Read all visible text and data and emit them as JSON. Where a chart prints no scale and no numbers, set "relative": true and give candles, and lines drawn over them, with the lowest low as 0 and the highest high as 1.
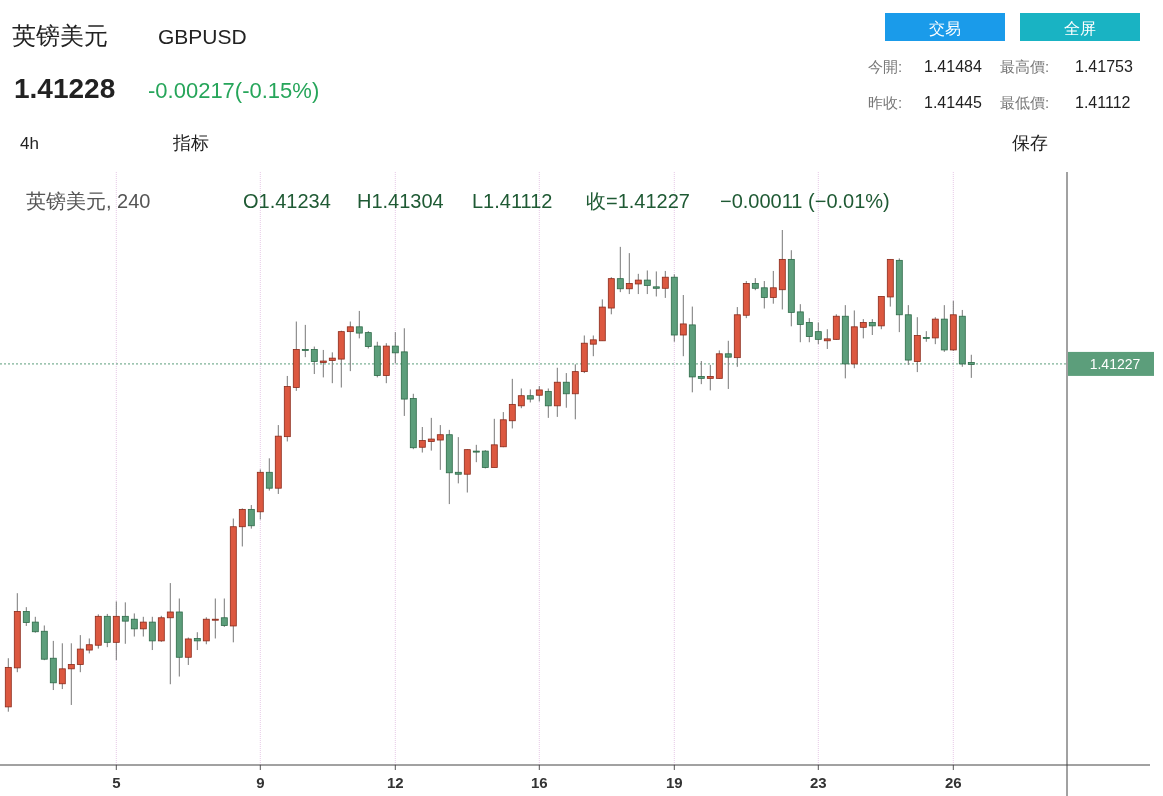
{
  "chart_data": {
    "type": "candlestick",
    "title": "英镑美元",
    "subtitle": "GBPUSD",
    "relative": true,
    "grid": "x",
    "colors": [
      "#dc5840",
      "#dc5840",
      "#5c9e7b",
      "#5c9e7b",
      "#5c9e7b",
      "#5c9e7b",
      "#dc5840",
      "#dc5840",
      "#dc5840",
      "#dc5840",
      "#dc5840",
      "#5c9e7b",
      "#dc5840",
      "#5c9e7b",
      "#5c9e7b",
      "#dc5840",
      "#5c9e7b",
      "#dc5840",
      "#dc5840",
      "#5c9e7b",
      "#dc5840",
      "#5c9e7b",
      "#dc5840",
      "#dc5840",
      "#5c9e7b",
      "#dc5840",
      "#dc5840",
      "#5c9e7b",
      "#dc5840",
      "#5c9e7b",
      "#dc5840",
      "#dc5840",
      "#dc5840",
      "#5c9e7b",
      "#5c9e7b",
      "#dc5840",
      "#dc5840",
      "#dc5840",
      "#dc5840",
      "#5c9e7b",
      "#5c9e7b",
      "#5c9e7b",
      "#dc5840",
      "#5c9e7b",
      "#5c9e7b",
      "#5c9e7b",
      "#dc5840",
      "#dc5840",
      "#dc5840",
      "#5c9e7b",
      "#5c9e7b",
      "#dc5840",
      "#5c9e7b",
      "#5c9e7b",
      "#dc5840",
      "#dc5840",
      "#dc5840",
      "#dc5840",
      "#5c9e7b",
      "#dc5840",
      "#5c9e7b",
      "#dc5840",
      "#5c9e7b",
      "#dc5840",
      "#dc5840",
      "#dc5840",
      "#dc5840",
      "#dc5840",
      "#5c9e7b",
      "#dc5840",
      "#dc5840",
      "#5c9e7b",
      "#5c9e7b",
      "#dc5840",
      "#5c9e7b",
      "#dc5840",
      "#5c9e7b",
      "#5c9e7b",
      "#dc5840",
      "#dc5840",
      "#5c9e7b",
      "#dc5840",
      "#dc5840",
      "#5c9e7b",
      "#5c9e7b",
      "#dc5840",
      "#dc5840",
      "#5c9e7b",
      "#5c9e7b",
      "#5c9e7b",
      "#5c9e7b",
      "#dc5840",
      "#dc5840",
      "#5c9e7b",
      "#dc5840",
      "#dc5840",
      "#5c9e7b",
      "#dc5840",
      "#dc5840",
      "#5c9e7b",
      "#5c9e7b",
      "#dc5840",
      "#5c9e7b",
      "#dc5840",
      "#5c9e7b",
      "#dc5840",
      "#5c9e7b",
      "#5c9e7b"
    ],
    "categories": [
      null,
      null,
      null,
      null,
      null,
      null,
      null,
      null,
      null,
      null,
      null,
      null,
      "5",
      null,
      null,
      null,
      null,
      null,
      null,
      null,
      null,
      null,
      null,
      null,
      null,
      null,
      null,
      null,
      "9",
      null,
      null,
      null,
      null,
      null,
      null,
      null,
      null,
      null,
      null,
      null,
      null,
      null,
      null,
      "12",
      null,
      null,
      null,
      null,
      null,
      null,
      null,
      null,
      null,
      null,
      null,
      null,
      null,
      null,
      null,
      "16",
      null,
      null,
      null,
      null,
      null,
      null,
      null,
      null,
      null,
      null,
      null,
      null,
      null,
      null,
      "19",
      null,
      null,
      null,
      null,
      null,
      null,
      null,
      null,
      null,
      null,
      null,
      null,
      null,
      null,
      null,
      "23",
      null,
      null,
      null,
      null,
      null,
      null,
      null,
      null,
      null,
      null,
      null,
      null,
      null,
      null,
      "26",
      null,
      null
    ],
    "ohlc": [
      [
        0.01,
        0.111,
        0,
        0.092
      ],
      [
        0.091,
        0.246,
        0.082,
        0.208
      ],
      [
        0.208,
        0.217,
        0.178,
        0.185
      ],
      [
        0.186,
        0.197,
        0.164,
        0.166
      ],
      [
        0.167,
        0.179,
        0.107,
        0.109
      ],
      [
        0.111,
        0.147,
        0.045,
        0.06
      ],
      [
        0.058,
        0.142,
        0.047,
        0.089
      ],
      [
        0.089,
        0.142,
        0.014,
        0.098
      ],
      [
        0.098,
        0.159,
        0.082,
        0.13
      ],
      [
        0.128,
        0.152,
        0.121,
        0.139
      ],
      [
        0.138,
        0.202,
        0.131,
        0.198
      ],
      [
        0.198,
        0.203,
        0.134,
        0.144
      ],
      [
        0.144,
        0.229,
        0.107,
        0.198
      ],
      [
        0.198,
        0.227,
        0.141,
        0.188
      ],
      [
        0.192,
        0.204,
        0.156,
        0.172
      ],
      [
        0.172,
        0.197,
        0.156,
        0.186
      ],
      [
        0.186,
        0.197,
        0.128,
        0.147
      ],
      [
        0.147,
        0.199,
        0.145,
        0.195
      ],
      [
        0.195,
        0.267,
        0.057,
        0.207
      ],
      [
        0.207,
        0.235,
        0.073,
        0.113
      ],
      [
        0.113,
        0.154,
        0.097,
        0.151
      ],
      [
        0.152,
        0.165,
        0.128,
        0.147
      ],
      [
        0.147,
        0.196,
        0.14,
        0.192
      ],
      [
        0.19,
        0.235,
        0.152,
        0.192
      ],
      [
        0.195,
        0.235,
        0.176,
        0.179
      ],
      [
        0.178,
        0.401,
        0.144,
        0.384
      ],
      [
        0.384,
        0.422,
        0.343,
        0.42
      ],
      [
        0.42,
        0.429,
        0.38,
        0.386
      ],
      [
        0.415,
        0.503,
        0.399,
        0.497
      ],
      [
        0.497,
        0.526,
        0.459,
        0.464
      ],
      [
        0.464,
        0.595,
        0.452,
        0.572
      ],
      [
        0.571,
        0.697,
        0.561,
        0.675
      ],
      [
        0.673,
        0.81,
        0.666,
        0.752
      ],
      [
        0.752,
        0.803,
        0.736,
        0.751
      ],
      [
        0.752,
        0.758,
        0.701,
        0.727
      ],
      [
        0.725,
        0.751,
        0.694,
        0.728
      ],
      [
        0.729,
        0.746,
        0.682,
        0.734
      ],
      [
        0.732,
        0.791,
        0.673,
        0.789
      ],
      [
        0.789,
        0.81,
        0.707,
        0.799
      ],
      [
        0.799,
        0.832,
        0.775,
        0.786
      ],
      [
        0.787,
        0.79,
        0.754,
        0.758
      ],
      [
        0.759,
        0.768,
        0.694,
        0.698
      ],
      [
        0.698,
        0.765,
        0.682,
        0.759
      ],
      [
        0.759,
        0.788,
        0.723,
        0.745
      ],
      [
        0.747,
        0.796,
        0.614,
        0.649
      ],
      [
        0.65,
        0.66,
        0.545,
        0.548
      ],
      [
        0.549,
        0.591,
        0.538,
        0.563
      ],
      [
        0.561,
        0.61,
        0.542,
        0.566
      ],
      [
        0.564,
        0.595,
        0.502,
        0.575
      ],
      [
        0.575,
        0.585,
        0.431,
        0.496
      ],
      [
        0.497,
        0.57,
        0.474,
        0.493
      ],
      [
        0.493,
        0.545,
        0.455,
        0.544
      ],
      [
        0.541,
        0.554,
        0.518,
        0.539
      ],
      [
        0.541,
        0.543,
        0.505,
        0.507
      ],
      [
        0.507,
        0.608,
        0.507,
        0.554
      ],
      [
        0.55,
        0.622,
        0.549,
        0.606
      ],
      [
        0.604,
        0.691,
        0.588,
        0.638
      ],
      [
        0.635,
        0.671,
        0.63,
        0.656
      ],
      [
        0.656,
        0.669,
        0.642,
        0.649
      ],
      [
        0.657,
        0.676,
        0.644,
        0.668
      ],
      [
        0.665,
        0.671,
        0.61,
        0.635
      ],
      [
        0.635,
        0.714,
        0.612,
        0.684
      ],
      [
        0.684,
        0.703,
        0.631,
        0.66
      ],
      [
        0.66,
        0.721,
        0.607,
        0.706
      ],
      [
        0.706,
        0.781,
        0.703,
        0.765
      ],
      [
        0.763,
        0.781,
        0.738,
        0.772
      ],
      [
        0.77,
        0.856,
        0.77,
        0.84
      ],
      [
        0.838,
        0.902,
        0.825,
        0.899
      ],
      [
        0.899,
        0.965,
        0.871,
        0.878
      ],
      [
        0.878,
        0.952,
        0.867,
        0.889
      ],
      [
        0.888,
        0.909,
        0.867,
        0.896
      ],
      [
        0.896,
        0.916,
        0.867,
        0.885
      ],
      [
        0.882,
        0.914,
        0.862,
        0.879
      ],
      [
        0.879,
        0.915,
        0.859,
        0.902
      ],
      [
        0.902,
        0.908,
        0.768,
        0.782
      ],
      [
        0.782,
        0.865,
        0.738,
        0.805
      ],
      [
        0.803,
        0.841,
        0.663,
        0.695
      ],
      [
        0.696,
        0.728,
        0.68,
        0.692
      ],
      [
        0.692,
        0.72,
        0.667,
        0.696
      ],
      [
        0.692,
        0.75,
        0.691,
        0.743
      ],
      [
        0.743,
        0.77,
        0.67,
        0.736
      ],
      [
        0.735,
        0.84,
        0.716,
        0.824
      ],
      [
        0.823,
        0.894,
        0.817,
        0.889
      ],
      [
        0.889,
        0.9,
        0.875,
        0.879
      ],
      [
        0.88,
        0.894,
        0.837,
        0.86
      ],
      [
        0.86,
        0.915,
        0.847,
        0.88
      ],
      [
        0.876,
        1,
        0.835,
        0.939
      ],
      [
        0.939,
        0.958,
        0.8,
        0.829
      ],
      [
        0.83,
        0.846,
        0.767,
        0.804
      ],
      [
        0.808,
        0.817,
        0.767,
        0.779
      ],
      [
        0.789,
        0.808,
        0.763,
        0.773
      ],
      [
        0.77,
        0.794,
        0.753,
        0.774
      ],
      [
        0.773,
        0.825,
        0.772,
        0.821
      ],
      [
        0.821,
        0.844,
        0.692,
        0.722
      ],
      [
        0.722,
        0.833,
        0.713,
        0.799
      ],
      [
        0.798,
        0.815,
        0.775,
        0.808
      ],
      [
        0.808,
        0.815,
        0.782,
        0.801
      ],
      [
        0.801,
        0.862,
        0.794,
        0.862
      ],
      [
        0.861,
        0.939,
        0.841,
        0.939
      ],
      [
        0.937,
        0.941,
        0.788,
        0.824
      ],
      [
        0.824,
        0.844,
        0.72,
        0.73
      ],
      [
        0.727,
        0.819,
        0.705,
        0.781
      ],
      [
        0.777,
        0.79,
        0.768,
        0.775
      ],
      [
        0.776,
        0.819,
        0.763,
        0.815
      ],
      [
        0.815,
        0.844,
        0.747,
        0.751
      ],
      [
        0.751,
        0.853,
        0.749,
        0.824
      ],
      [
        0.821,
        0.834,
        0.716,
        0.722
      ],
      [
        0.725,
        0.741,
        0.693,
        0.721
      ]
    ],
    "ref_lines": [
      {
        "axis": "y",
        "value": 0.722,
        "color": "#5c9e7b",
        "line_style": "dotted"
      }
    ],
    "annotations": [
      "1.41228",
      "-0.00217(-0.15%)",
      "今開:",
      "1.41484",
      "最高價:",
      "1.41753",
      "昨收:",
      "1.41445",
      "最低價:",
      "1.41112",
      "4h",
      "指标",
      "保存",
      "交易",
      "全屏",
      "英镑美元, 240",
      "O1.41234",
      "H1.41304",
      "L1.41112",
      "收=1.41227",
      "−0.00011 (−0.01%)",
      "1.41227"
    ]
  }
}
